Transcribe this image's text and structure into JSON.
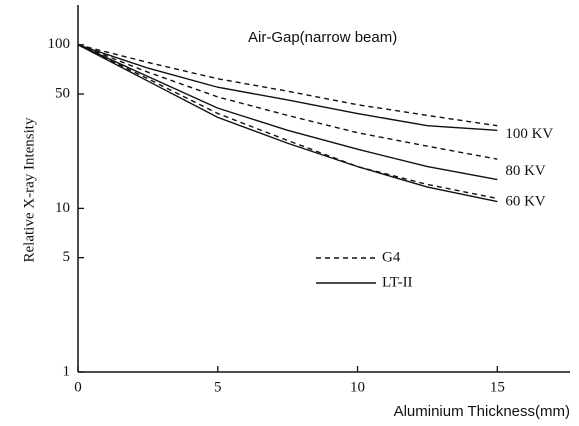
{
  "chart_data": {
    "type": "line",
    "title": "Air-Gap(narrow beam)",
    "x_label": "Aluminium Thickness(mm)",
    "y_label": "Relative X-ray Intensity",
    "x": [
      0,
      2.5,
      5,
      7.5,
      10,
      12.5,
      15
    ],
    "xlim": [
      0,
      17.6
    ],
    "xticks": [
      0,
      5,
      10,
      15
    ],
    "ylim": [
      1,
      175
    ],
    "yticks": [
      1,
      5,
      10,
      50,
      100
    ],
    "log_y": true,
    "legend": [
      {
        "name": "G4",
        "style": "dashed"
      },
      {
        "name": "LT-II",
        "style": "solid"
      }
    ],
    "groups": [
      {
        "name": "100 KV",
        "lines": [
          {
            "legend": 0,
            "values": [
              100,
              78,
              62,
              52,
              43,
              37,
              32
            ]
          },
          {
            "legend": 1,
            "values": [
              100,
              72,
              55,
              46,
              38,
              32,
              30
            ]
          }
        ]
      },
      {
        "name": "80 KV",
        "lines": [
          {
            "legend": 0,
            "values": [
              100,
              68,
              48,
              37,
              29,
              24,
              20
            ]
          },
          {
            "legend": 1,
            "values": [
              100,
              64,
              41,
              30,
              23,
              18,
              15
            ]
          }
        ]
      },
      {
        "name": "60 KV",
        "lines": [
          {
            "legend": 0,
            "values": [
              100,
              62,
              38,
              26,
              18,
              14,
              11.5
            ]
          },
          {
            "legend": 1,
            "values": [
              100,
              60,
              36,
              25,
              18,
              13.5,
              11
            ]
          }
        ]
      }
    ]
  }
}
